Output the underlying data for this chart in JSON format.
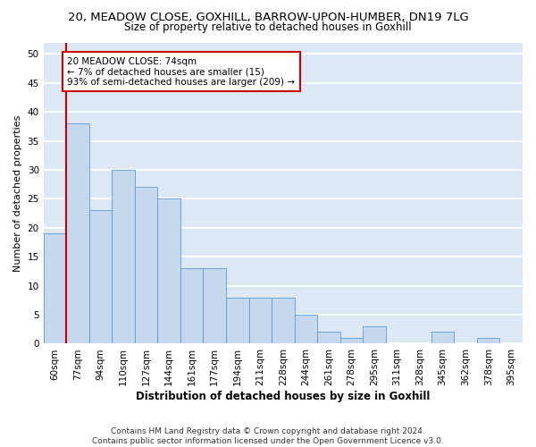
{
  "title1": "20, MEADOW CLOSE, GOXHILL, BARROW-UPON-HUMBER, DN19 7LG",
  "title2": "Size of property relative to detached houses in Goxhill",
  "xlabel": "Distribution of detached houses by size in Goxhill",
  "ylabel": "Number of detached properties",
  "categories": [
    "60sqm",
    "77sqm",
    "94sqm",
    "110sqm",
    "127sqm",
    "144sqm",
    "161sqm",
    "177sqm",
    "194sqm",
    "211sqm",
    "228sqm",
    "244sqm",
    "261sqm",
    "278sqm",
    "295sqm",
    "311sqm",
    "328sqm",
    "345sqm",
    "362sqm",
    "378sqm",
    "395sqm"
  ],
  "values": [
    19,
    38,
    23,
    30,
    27,
    25,
    13,
    13,
    8,
    8,
    8,
    5,
    2,
    1,
    3,
    0,
    0,
    2,
    0,
    1,
    0
  ],
  "bar_color": "#c5d8ed",
  "bar_edge_color": "#5b9bd5",
  "background_color": "#dce9f5",
  "grid_color": "#ffffff",
  "annotation_box_text": "20 MEADOW CLOSE: 74sqm\n← 7% of detached houses are smaller (15)\n93% of semi-detached houses are larger (209) →",
  "annotation_box_color": "#ffffff",
  "annotation_box_edge": "#cc0000",
  "marker_line_color": "#cc0000",
  "ylim": [
    0,
    52
  ],
  "yticks": [
    0,
    5,
    10,
    15,
    20,
    25,
    30,
    35,
    40,
    45,
    50
  ],
  "footnote": "Contains HM Land Registry data © Crown copyright and database right 2024.\nContains public sector information licensed under the Open Government Licence v3.0.",
  "title1_fontsize": 9.5,
  "title2_fontsize": 8.5,
  "tick_fontsize": 7.5,
  "xlabel_fontsize": 8.5,
  "ylabel_fontsize": 8.0,
  "footnote_fontsize": 6.5
}
